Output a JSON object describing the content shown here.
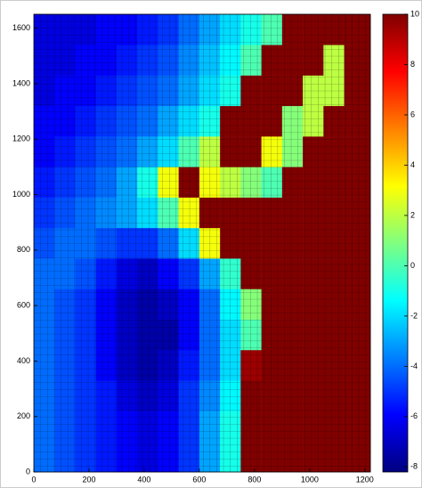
{
  "chart_data": {
    "type": "heatmap",
    "x_edges": [
      0,
      75,
      150,
      225,
      300,
      375,
      450,
      525,
      600,
      675,
      750,
      825,
      900,
      975,
      1050,
      1125,
      1220
    ],
    "y_edges": [
      0,
      110,
      220,
      330,
      440,
      550,
      660,
      770,
      880,
      990,
      1100,
      1210,
      1320,
      1430,
      1540,
      1650
    ],
    "z": [
      [
        -4,
        -4.5,
        -5,
        -5.5,
        -6,
        -6.5,
        -6,
        -5,
        -3,
        -1,
        10,
        10,
        10,
        10,
        10,
        10
      ],
      [
        -4,
        -4.5,
        -5,
        -5.5,
        -6,
        -6.5,
        -6,
        -5,
        -3,
        -1,
        10,
        10,
        10,
        10,
        10,
        10
      ],
      [
        -4,
        -4.5,
        -5,
        -5.5,
        -6.5,
        -7,
        -6.5,
        -5,
        -3.5,
        -1.5,
        10,
        10,
        10,
        10,
        10,
        10
      ],
      [
        -4,
        -4.5,
        -5,
        -6,
        -7,
        -7.5,
        -7,
        -5.5,
        -4,
        -2,
        9.5,
        10,
        10,
        10,
        10,
        10
      ],
      [
        -4,
        -4.5,
        -5,
        -6,
        -7,
        -7.5,
        -7.5,
        -6,
        -4,
        -2,
        0,
        10,
        10,
        10,
        10,
        10
      ],
      [
        -4,
        -4.5,
        -5,
        -6,
        -7,
        -7.5,
        -7,
        -6,
        -4,
        -1.5,
        1,
        10,
        10,
        10,
        10,
        10
      ],
      [
        -4,
        -4,
        -4.5,
        -5.5,
        -6.5,
        -7,
        -6,
        -5,
        -3,
        -0.5,
        10,
        10,
        10,
        10,
        10,
        10
      ],
      [
        -4.5,
        -4,
        -4,
        -4.5,
        -5,
        -5,
        -4,
        -2,
        3,
        10,
        10,
        10,
        10,
        10,
        10,
        10
      ],
      [
        -5,
        -4.5,
        -4,
        -3.5,
        -3,
        -2,
        0,
        3,
        10,
        10,
        10,
        10,
        10,
        10,
        10,
        10
      ],
      [
        -5.5,
        -5,
        -4.5,
        -4,
        -3,
        -1,
        3,
        10,
        3,
        2,
        1,
        0,
        10,
        10,
        10,
        10
      ],
      [
        -6,
        -5.5,
        -5,
        -4.5,
        -4,
        -3,
        -2,
        0,
        2,
        10,
        10,
        3,
        1,
        10,
        10,
        10
      ],
      [
        -6,
        -6,
        -5.5,
        -5,
        -4.5,
        -4,
        -3,
        -2,
        -1,
        10,
        10,
        10,
        1,
        2,
        10,
        10
      ],
      [
        -6.5,
        -6,
        -6,
        -5.5,
        -5,
        -4.5,
        -4,
        -3,
        -2,
        -1,
        10,
        10,
        10,
        2,
        2,
        10
      ],
      [
        -6.5,
        -6.5,
        -6,
        -6,
        -5.5,
        -5,
        -4.5,
        -3.5,
        -2.5,
        -1.5,
        0,
        10,
        10,
        10,
        2,
        10
      ],
      [
        -6.5,
        -6.5,
        -6.5,
        -6,
        -6,
        -5.5,
        -5,
        -4,
        -3,
        -2,
        -1,
        0,
        10,
        10,
        10,
        10
      ]
    ],
    "colormap": "jet",
    "clim": [
      -8.2,
      10
    ],
    "colorbar_ticks": [
      -8,
      -6,
      -4,
      -2,
      0,
      2,
      4,
      6,
      8,
      10
    ],
    "xlim": [
      0,
      1220
    ],
    "ylim": [
      0,
      1650
    ],
    "xticks": [
      0,
      200,
      400,
      600,
      800,
      1000,
      1200
    ],
    "yticks": [
      0,
      200,
      400,
      600,
      800,
      1000,
      1200,
      1400,
      1600
    ]
  }
}
